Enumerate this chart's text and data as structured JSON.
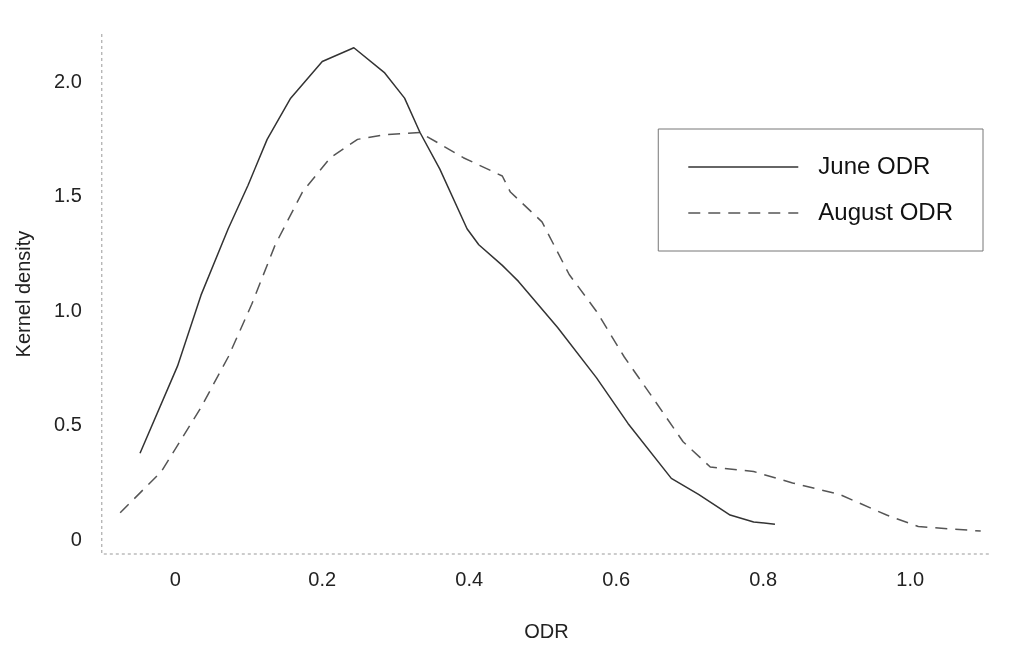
{
  "chart_data": {
    "type": "line",
    "xlabel": "ODR",
    "ylabel": "Kernel density",
    "xlim": [
      -0.1,
      1.11
    ],
    "ylim": [
      -0.06,
      2.21
    ],
    "xticks": [
      {
        "value": 0,
        "label": "0"
      },
      0.2,
      0.4,
      0.6,
      0.8,
      {
        "value": 1,
        "label": "1.0"
      }
    ],
    "yticks": [
      {
        "value": 0,
        "label": "0"
      },
      0.5,
      {
        "value": 1,
        "label": "1.0"
      },
      1.5,
      {
        "value": 2,
        "label": "2.0"
      }
    ],
    "grid": false,
    "legend": "top right",
    "marker": "none",
    "series": [
      {
        "name": "June ODR",
        "color": "#333333",
        "line_style": "solid",
        "x": [
          -0.048,
          0.003,
          0.035,
          0.072,
          0.099,
          0.125,
          0.157,
          0.2,
          0.243,
          0.285,
          0.312,
          0.333,
          0.36,
          0.397,
          0.413,
          0.445,
          0.467,
          0.52,
          0.573,
          0.616,
          0.675,
          0.712,
          0.755,
          0.787,
          0.816
        ],
        "values": [
          0.38,
          0.76,
          1.07,
          1.36,
          1.55,
          1.75,
          1.93,
          2.09,
          2.15,
          2.04,
          1.93,
          1.78,
          1.62,
          1.36,
          1.29,
          1.2,
          1.13,
          0.93,
          0.71,
          0.51,
          0.27,
          0.2,
          0.11,
          0.08,
          0.07
        ]
      },
      {
        "name": "August ODR",
        "color": "#555555",
        "line_style": "dashed",
        "x": [
          -0.075,
          -0.019,
          0.035,
          0.072,
          0.104,
          0.136,
          0.173,
          0.211,
          0.248,
          0.285,
          0.333,
          0.36,
          0.392,
          0.445,
          0.456,
          0.499,
          0.536,
          0.573,
          0.611,
          0.648,
          0.691,
          0.728,
          0.787,
          0.84,
          0.904,
          0.968,
          1.011,
          1.096
        ],
        "values": [
          0.12,
          0.3,
          0.58,
          0.8,
          1.03,
          1.29,
          1.52,
          1.67,
          1.75,
          1.77,
          1.78,
          1.73,
          1.67,
          1.59,
          1.52,
          1.39,
          1.16,
          1.0,
          0.8,
          0.63,
          0.43,
          0.32,
          0.3,
          0.25,
          0.2,
          0.11,
          0.06,
          0.04
        ]
      }
    ]
  }
}
